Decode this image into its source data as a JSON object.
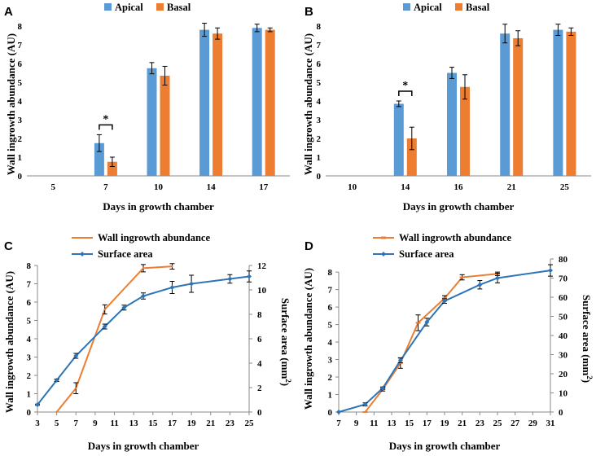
{
  "chart_data": [
    {
      "panel": "A",
      "type": "bar",
      "categories": [
        "5",
        "7",
        "10",
        "14",
        "17"
      ],
      "series": [
        {
          "name": "Apical",
          "color": "#5b9bd5",
          "values": [
            null,
            1.75,
            5.75,
            7.8,
            7.9
          ],
          "errors": [
            null,
            0.45,
            0.3,
            0.35,
            0.2
          ]
        },
        {
          "name": "Basal",
          "color": "#ed7d31",
          "values": [
            null,
            0.75,
            5.35,
            7.6,
            7.8
          ],
          "errors": [
            null,
            0.25,
            0.5,
            0.3,
            0.1
          ]
        }
      ],
      "ylim": [
        0,
        8
      ],
      "yticks": [
        "0",
        "1",
        "2",
        "3",
        "4",
        "5",
        "6",
        "7",
        "8"
      ],
      "ylabel": "Wall ingrowth abundance (AU)",
      "xlabel": "Days in growth chamber",
      "annotation": {
        "text": "*",
        "between_category": "7"
      },
      "legend_position": "top-center"
    },
    {
      "panel": "B",
      "type": "bar",
      "categories": [
        "10",
        "14",
        "16",
        "21",
        "25"
      ],
      "series": [
        {
          "name": "Apical",
          "color": "#5b9bd5",
          "values": [
            null,
            3.85,
            5.5,
            7.6,
            7.8
          ],
          "errors": [
            null,
            0.15,
            0.3,
            0.5,
            0.3
          ]
        },
        {
          "name": "Basal",
          "color": "#ed7d31",
          "values": [
            null,
            2.0,
            4.75,
            7.35,
            7.7
          ],
          "errors": [
            null,
            0.6,
            0.65,
            0.4,
            0.2
          ]
        }
      ],
      "ylim": [
        0,
        8
      ],
      "yticks": [
        "0",
        "1",
        "2",
        "3",
        "4",
        "5",
        "6",
        "7",
        "8"
      ],
      "ylabel": "Wall ingrowth abundance (AU)",
      "xlabel": "Days in growth chamber",
      "annotation": {
        "text": "*",
        "between_category": "14"
      },
      "legend_position": "top-center"
    },
    {
      "panel": "C",
      "type": "line",
      "xlabel": "Days in growth chamber",
      "ylabel_left": "Wall ingrowth abundance (AU)",
      "ylabel_right_main": "Surface area (mm",
      "ylabel_right_sup": "2",
      "ylabel_right_end": ")",
      "xlim": [
        3,
        25
      ],
      "xticks": [
        "3",
        "5",
        "7",
        "9",
        "11",
        "13",
        "15",
        "17",
        "19",
        "21",
        "23",
        "25"
      ],
      "ylim_left": [
        0,
        8
      ],
      "yticks_left": [
        "0",
        "1",
        "2",
        "3",
        "4",
        "5",
        "6",
        "7",
        "8"
      ],
      "ylim_right": [
        0,
        12
      ],
      "yticks_right": [
        "0",
        "2",
        "4",
        "6",
        "8",
        "10",
        "12"
      ],
      "series": [
        {
          "name": "Wall ingrowth abundance",
          "axis": "left",
          "color": "#ed7d31",
          "marker": "none",
          "x": [
            5,
            7,
            10,
            14,
            17
          ],
          "y": [
            0,
            1.3,
            5.6,
            7.85,
            7.95
          ],
          "errors": [
            0,
            0.3,
            0.25,
            0.2,
            0.15
          ]
        },
        {
          "name": "Surface area",
          "axis": "right",
          "color": "#2e75b6",
          "marker": "diamond",
          "x": [
            3,
            5,
            7,
            10,
            12,
            14,
            17,
            19,
            23,
            25
          ],
          "y": [
            0.6,
            2.6,
            4.6,
            7.0,
            8.55,
            9.5,
            10.2,
            10.5,
            10.9,
            11.1
          ],
          "errors": [
            0.05,
            0.1,
            0.2,
            0.2,
            0.2,
            0.25,
            0.5,
            0.7,
            0.35,
            0.45
          ]
        }
      ],
      "legend_position": "top-center"
    },
    {
      "panel": "D",
      "type": "line",
      "xlabel": "Days in growth chamber",
      "ylabel_left": "Wall ingrowth abundance (AU)",
      "ylabel_right_main": "Surface area (mm",
      "ylabel_right_sup": "2",
      "ylabel_right_end": ")",
      "xlim": [
        7,
        31
      ],
      "xticks": [
        "7",
        "9",
        "11",
        "13",
        "15",
        "17",
        "19",
        "21",
        "23",
        "25",
        "27",
        "29",
        "31"
      ],
      "ylim_left": [
        0,
        8.75
      ],
      "yticks_left": [
        "0",
        "1",
        "2",
        "3",
        "4",
        "5",
        "6",
        "7",
        "8"
      ],
      "ylim_right": [
        0,
        80
      ],
      "yticks_right": [
        "0",
        "10",
        "20",
        "30",
        "40",
        "50",
        "60",
        "70",
        "80"
      ],
      "series": [
        {
          "name": "Wall ingrowth abundance",
          "axis": "left",
          "color": "#ed7d31",
          "marker": "dash",
          "x": [
            10,
            12,
            14,
            16,
            19,
            21,
            25
          ],
          "y": [
            0,
            1.3,
            2.8,
            5.1,
            6.5,
            7.7,
            7.9
          ],
          "errors": [
            0,
            0.1,
            0.3,
            0.45,
            0.15,
            0.15,
            0.1
          ]
        },
        {
          "name": "Surface area",
          "axis": "right",
          "color": "#2e75b6",
          "marker": "diamond",
          "x": [
            7,
            10,
            12,
            14,
            17,
            19,
            23,
            25,
            31
          ],
          "y": [
            0,
            4,
            12.5,
            27,
            47,
            58,
            66.5,
            70,
            74
          ],
          "errors": [
            0,
            0.8,
            0.6,
            1.2,
            2,
            1.2,
            2.2,
            2.5,
            3
          ]
        }
      ],
      "legend_position": "top-center"
    }
  ]
}
